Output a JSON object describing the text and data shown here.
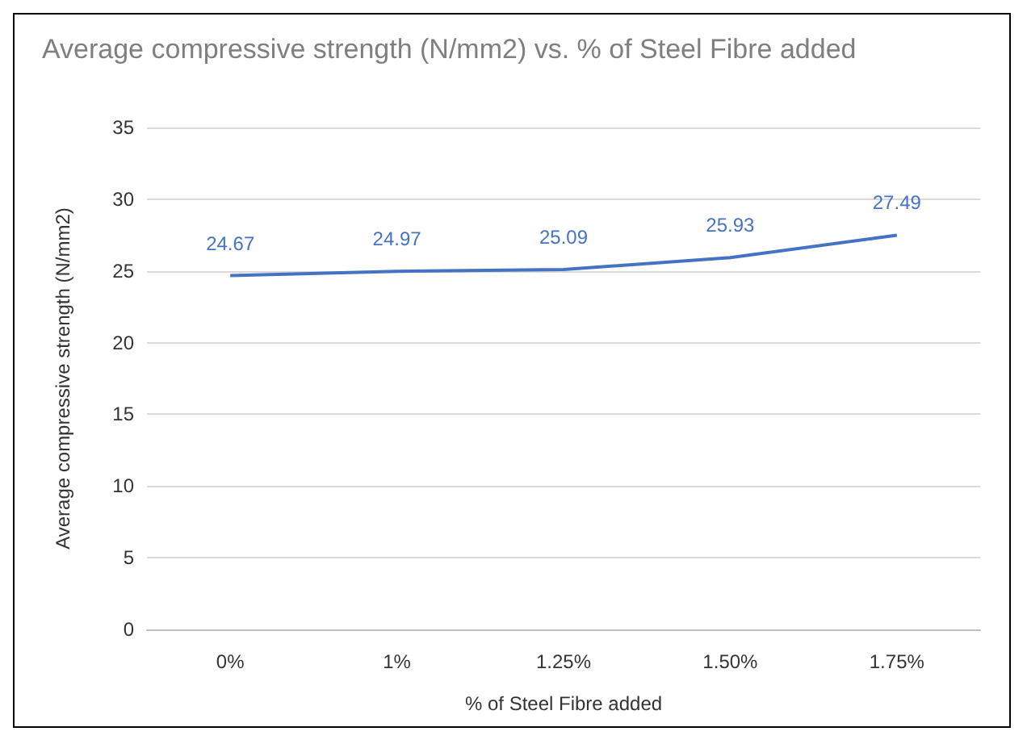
{
  "chart_data": {
    "type": "line",
    "title": "Average compressive strength (N/mm2) vs. % of Steel Fibre added",
    "xlabel": "% of Steel Fibre added",
    "ylabel": "Average compressive strength (N/mm2)",
    "categories": [
      "0%",
      "1%",
      "1.25%",
      "1.50%",
      "1.75%"
    ],
    "series": [
      {
        "color": "#4472c4",
        "values": [
          24.67,
          24.97,
          25.09,
          25.93,
          27.49
        ]
      }
    ],
    "ylim": [
      0,
      35
    ],
    "yticks": [
      0,
      5,
      10,
      15,
      20,
      25,
      30,
      35
    ],
    "grid": "y",
    "data_labels": true,
    "marker": "none"
  }
}
